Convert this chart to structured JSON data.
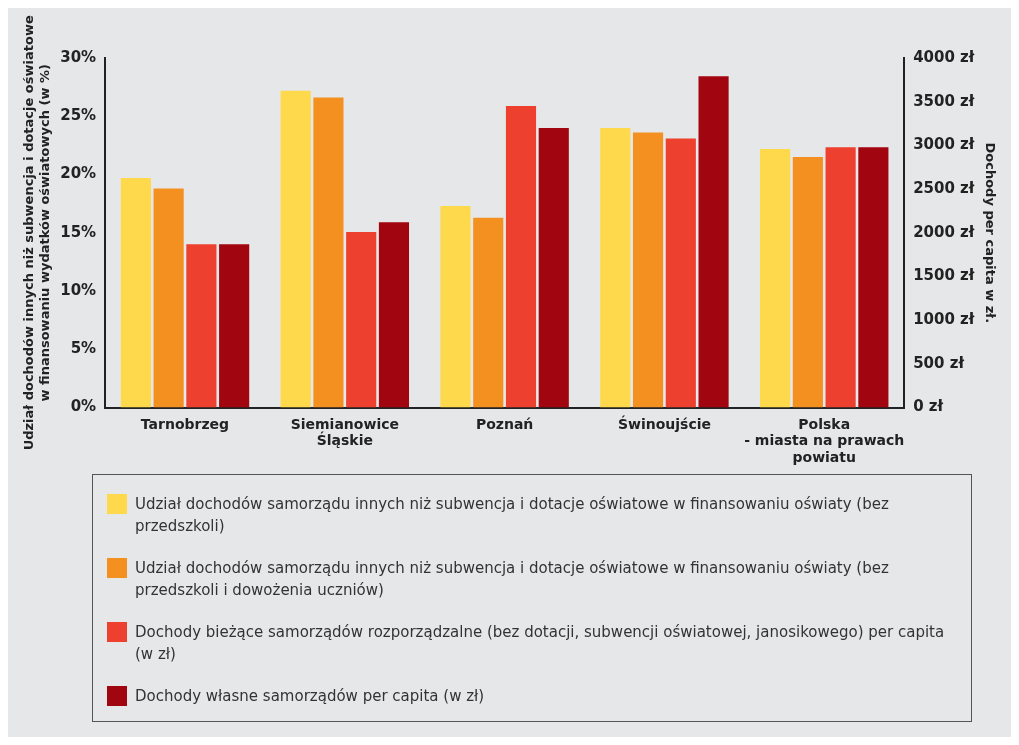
{
  "chart_data": {
    "type": "bar",
    "categories": [
      "Tarnobrzeg",
      "Siemianowice\nŚląskie",
      "Poznań",
      "Świnoujście",
      "Polska\n- miasta na prawach\npowiatu"
    ],
    "ylabel": "Udział dochodów innych niż subwencja i dotacje oświatowe\nw finansowaniu wydatków oświatowych (w %)",
    "y2label": "Dochody per capita w zł.",
    "series": [
      {
        "name": "Udział dochodów samorządu innych niż subwencja i dotacje oświatowe w finansowaniu oświaty (bez przedszkoli)",
        "color": "#fdd94b",
        "values": [
          19.7,
          27.2,
          17.3,
          24.0,
          22.2
        ]
      },
      {
        "name": "Udział dochodów samorządu innych niż subwencja i dotacje oświatowe w finansowaniu oświaty (bez przedszkoli i dowożenia uczniów)",
        "color": "#f39020",
        "values": [
          18.8,
          26.6,
          16.3,
          23.6,
          21.5
        ]
      },
      {
        "name": "Dochody bieżące samorządów rozporządzalne (bez dotacji, subwencji oświatowej, janosikowego) per capita (w zł)",
        "color": "#ee402f",
        "axis": "y2",
        "values": [
          1870,
          2010,
          3450,
          3080,
          2980
        ]
      },
      {
        "name": "Dochody własne samorządów per capita (w zł)",
        "color": "#a1050f",
        "axis": "y2",
        "values": [
          1870,
          2120,
          3200,
          3790,
          2980
        ]
      }
    ],
    "ylim": [
      0,
      30
    ],
    "yticks": [
      {
        "value": 0,
        "label": "0%"
      },
      {
        "value": 5,
        "label": "5%"
      },
      {
        "value": 10,
        "label": "10%"
      },
      {
        "value": 15,
        "label": "15%"
      },
      {
        "value": 20,
        "label": "20%"
      },
      {
        "value": 25,
        "label": "25%"
      },
      {
        "value": 30,
        "label": "30%"
      }
    ],
    "y2lim": [
      0,
      4000
    ],
    "y2ticks": [
      {
        "value": 0,
        "label": "0 zł"
      },
      {
        "value": 500,
        "label": "500 zł"
      },
      {
        "value": 1000,
        "label": "1000 zł"
      },
      {
        "value": 1500,
        "label": "1500 zł"
      },
      {
        "value": 2000,
        "label": "2000 zł"
      },
      {
        "value": 2500,
        "label": "2500 zł"
      },
      {
        "value": 3000,
        "label": "3000 zł"
      },
      {
        "value": 3500,
        "label": "3500 zł"
      },
      {
        "value": 4000,
        "label": "4000 zł"
      }
    ],
    "grid": false,
    "legend": "bottom"
  }
}
